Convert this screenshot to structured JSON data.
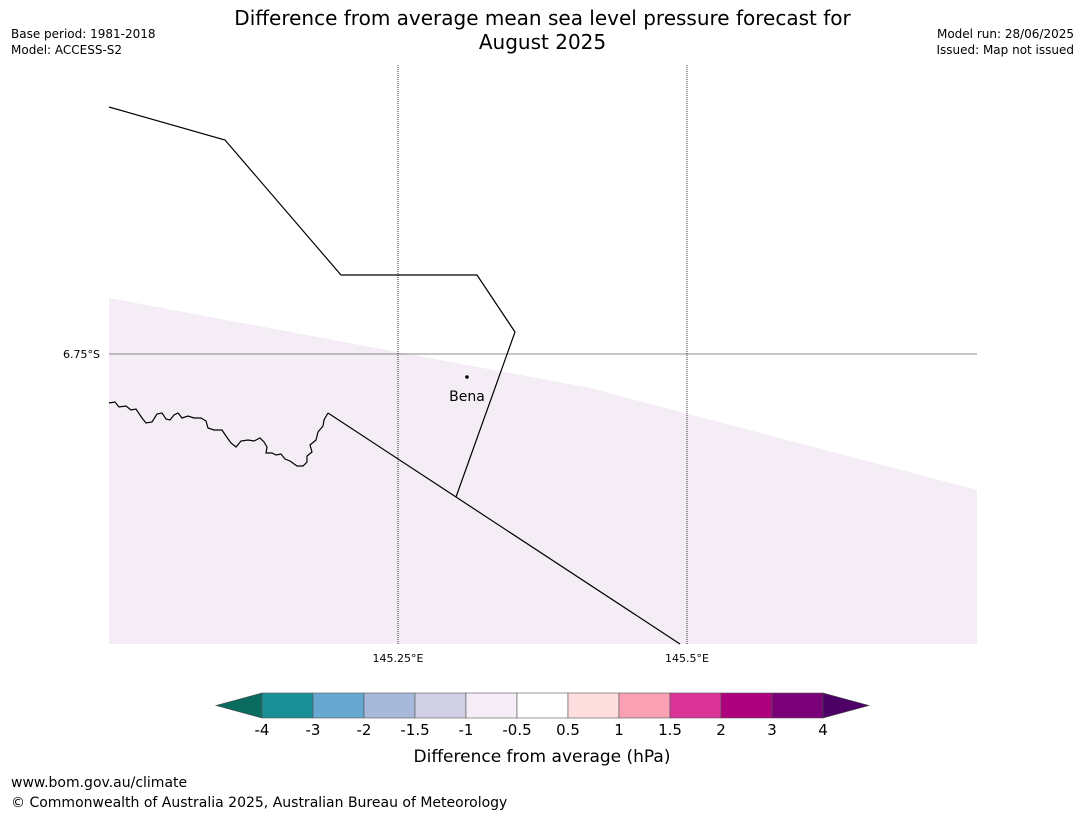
{
  "header": {
    "title_line1": "Difference from average mean sea level pressure forecast for",
    "title_line2": "August 2025",
    "base_period": "Base period: 1981-2018",
    "model": "Model: ACCESS-S2",
    "model_run": "Model run: 28/06/2025",
    "issued": "Issued: Map not issued"
  },
  "map": {
    "latitude_labels": [
      "6.75°S"
    ],
    "longitude_labels": [
      "145.25°E",
      "145.5°E"
    ],
    "places": [
      {
        "name": "Bena"
      }
    ],
    "fill_color": "#f4edf5",
    "outline_color": "#000000"
  },
  "colorbar": {
    "label": "Difference from average (hPa)",
    "tick_labels": [
      "-4",
      "-3",
      "-2",
      "-1.5",
      "-1",
      "-0.5",
      "0.5",
      "1",
      "1.5",
      "2",
      "3",
      "4"
    ],
    "under_color": "#0a6b5f",
    "over_color": "#4d0066",
    "colors": [
      "#1a9096",
      "#67a8d0",
      "#a8b8db",
      "#d0cfe3",
      "#f4edf5",
      "#ffffff",
      "#fddddd",
      "#f9a0b5",
      "#da3497",
      "#ad017e",
      "#7a0177"
    ]
  },
  "footer": {
    "url": "www.bom.gov.au/climate",
    "copyright": "© Commonwealth of Australia 2025, Australian Bureau of Meteorology"
  }
}
